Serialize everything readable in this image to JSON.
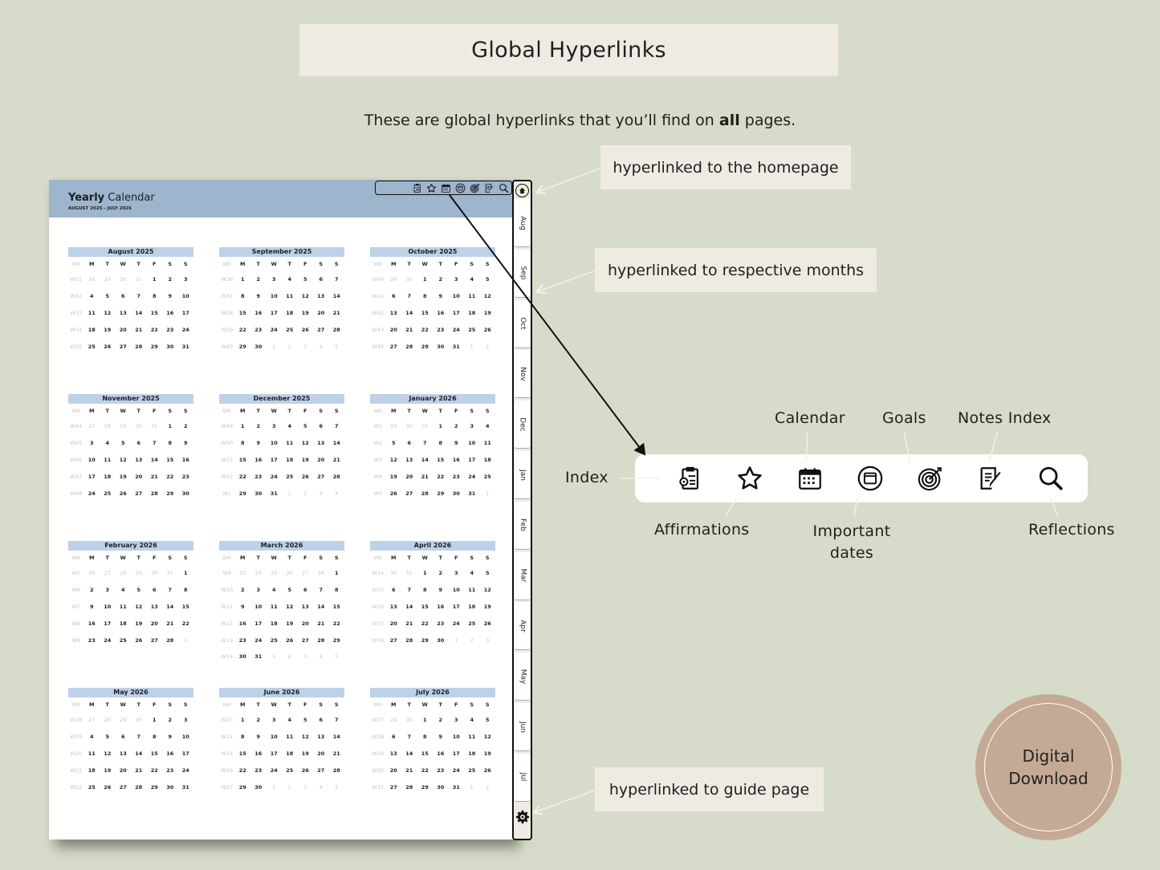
{
  "title": "Global Hyperlinks",
  "subtitle_pre": "These are global hyperlinks that you’ll find on ",
  "subtitle_bold": "all",
  "subtitle_post": " pages.",
  "callouts": {
    "home": "hyperlinked to the homepage",
    "months": "hyperlinked to respective months",
    "guide": "hyperlinked to guide page"
  },
  "icon_labels": {
    "index": "Index",
    "affirmations": "Affirmations",
    "calendar": "Calendar",
    "important_dates_1": "Important",
    "important_dates_2": "dates",
    "goals": "Goals",
    "notes_index": "Notes Index",
    "reflections": "Reflections"
  },
  "icons": [
    "index-icon",
    "affirmations-star-icon",
    "calendar-icon",
    "important-dates-icon",
    "goals-target-icon",
    "notes-index-icon",
    "reflections-search-icon"
  ],
  "badge": {
    "line1": "Digital",
    "line2": "Download"
  },
  "colors": {
    "background": "#d6dcc9",
    "header": "#9db5cd",
    "month_header": "#bdd1e8",
    "badge": "#c4a995",
    "callout": "#efebe3"
  },
  "planner": {
    "title_bold": "Yearly",
    "title_rest": " Calendar",
    "range": "AUGUST 2025 - JULY 2026",
    "weekdays": [
      "WK",
      "M",
      "T",
      "W",
      "T",
      "F",
      "S",
      "S"
    ],
    "side_tabs": [
      "Aug",
      "Sep",
      "Oct",
      "Nov",
      "Dec",
      "Jan",
      "Feb",
      "Mar",
      "Apr",
      "May",
      "Jun",
      "Jul"
    ],
    "months": [
      {
        "title": "August 2025",
        "lead": 4,
        "trail": 0,
        "weeks": [
          [
            "W31",
            28,
            29,
            30,
            31,
            1,
            2,
            3
          ],
          [
            "W32",
            4,
            5,
            6,
            7,
            8,
            9,
            10
          ],
          [
            "W33",
            11,
            12,
            13,
            14,
            15,
            16,
            17
          ],
          [
            "W34",
            18,
            19,
            20,
            21,
            22,
            23,
            24
          ],
          [
            "W35",
            25,
            26,
            27,
            28,
            29,
            30,
            31
          ]
        ]
      },
      {
        "title": "September 2025",
        "lead": 0,
        "trail": 5,
        "weeks": [
          [
            "W36",
            1,
            2,
            3,
            4,
            5,
            6,
            7
          ],
          [
            "W37",
            8,
            9,
            10,
            11,
            12,
            13,
            14
          ],
          [
            "W38",
            15,
            16,
            17,
            18,
            19,
            20,
            21
          ],
          [
            "W39",
            22,
            23,
            24,
            25,
            26,
            27,
            28
          ],
          [
            "W40",
            29,
            30,
            1,
            2,
            3,
            4,
            5
          ]
        ]
      },
      {
        "title": "October 2025",
        "lead": 2,
        "trail": 2,
        "weeks": [
          [
            "W40",
            29,
            30,
            1,
            2,
            3,
            4,
            5
          ],
          [
            "W41",
            6,
            7,
            8,
            9,
            10,
            11,
            12
          ],
          [
            "W42",
            13,
            14,
            15,
            16,
            17,
            18,
            19
          ],
          [
            "W43",
            20,
            21,
            22,
            23,
            24,
            25,
            26
          ],
          [
            "W44",
            27,
            28,
            29,
            30,
            31,
            1,
            2
          ]
        ]
      },
      {
        "title": "November 2025",
        "lead": 5,
        "trail": 0,
        "weeks": [
          [
            "W44",
            27,
            28,
            29,
            30,
            31,
            1,
            2
          ],
          [
            "W45",
            3,
            4,
            5,
            6,
            7,
            8,
            9
          ],
          [
            "W46",
            10,
            11,
            12,
            13,
            14,
            15,
            16
          ],
          [
            "W47",
            17,
            18,
            19,
            20,
            21,
            22,
            23
          ],
          [
            "W48",
            24,
            25,
            26,
            27,
            28,
            29,
            30
          ]
        ]
      },
      {
        "title": "December 2025",
        "lead": 0,
        "trail": 4,
        "weeks": [
          [
            "W49",
            1,
            2,
            3,
            4,
            5,
            6,
            7
          ],
          [
            "W50",
            8,
            9,
            10,
            11,
            12,
            13,
            14
          ],
          [
            "W51",
            15,
            16,
            17,
            18,
            19,
            20,
            21
          ],
          [
            "W52",
            22,
            23,
            24,
            25,
            26,
            27,
            28
          ],
          [
            "W1",
            29,
            30,
            31,
            1,
            2,
            3,
            4
          ]
        ]
      },
      {
        "title": "January 2026",
        "lead": 3,
        "trail": 1,
        "weeks": [
          [
            "W1",
            29,
            30,
            31,
            1,
            2,
            3,
            4
          ],
          [
            "W2",
            5,
            6,
            7,
            8,
            9,
            10,
            11
          ],
          [
            "W3",
            12,
            13,
            14,
            15,
            16,
            17,
            18
          ],
          [
            "W4",
            19,
            20,
            21,
            22,
            23,
            24,
            25
          ],
          [
            "W5",
            26,
            27,
            28,
            29,
            30,
            31,
            1
          ]
        ]
      },
      {
        "title": "February 2026",
        "lead": 6,
        "trail": 1,
        "weeks": [
          [
            "W5",
            26,
            27,
            28,
            29,
            30,
            31,
            1
          ],
          [
            "W6",
            2,
            3,
            4,
            5,
            6,
            7,
            8
          ],
          [
            "W7",
            9,
            10,
            11,
            12,
            13,
            14,
            15
          ],
          [
            "W8",
            16,
            17,
            18,
            19,
            20,
            21,
            22
          ],
          [
            "W9",
            23,
            24,
            25,
            26,
            27,
            28,
            1
          ]
        ]
      },
      {
        "title": "March 2026",
        "lead": 6,
        "trail": 5,
        "weeks": [
          [
            "W9",
            23,
            24,
            25,
            26,
            27,
            28,
            1
          ],
          [
            "W10",
            2,
            3,
            4,
            5,
            6,
            7,
            8
          ],
          [
            "W11",
            9,
            10,
            11,
            12,
            13,
            14,
            15
          ],
          [
            "W12",
            16,
            17,
            18,
            19,
            20,
            21,
            22
          ],
          [
            "W13",
            23,
            24,
            25,
            26,
            27,
            28,
            29
          ],
          [
            "W14",
            30,
            31,
            1,
            2,
            3,
            4,
            5
          ]
        ]
      },
      {
        "title": "April 2026",
        "lead": 2,
        "trail": 3,
        "weeks": [
          [
            "W14",
            30,
            31,
            1,
            2,
            3,
            4,
            5
          ],
          [
            "W15",
            6,
            7,
            8,
            9,
            10,
            11,
            12
          ],
          [
            "W16",
            13,
            14,
            15,
            16,
            17,
            18,
            19
          ],
          [
            "W17",
            20,
            21,
            22,
            23,
            24,
            25,
            26
          ],
          [
            "W18",
            27,
            28,
            29,
            30,
            1,
            2,
            3
          ]
        ]
      },
      {
        "title": "May 2026",
        "lead": 4,
        "trail": 0,
        "weeks": [
          [
            "W18",
            27,
            28,
            29,
            30,
            1,
            2,
            3
          ],
          [
            "W19",
            4,
            5,
            6,
            7,
            8,
            9,
            10
          ],
          [
            "W20",
            11,
            12,
            13,
            14,
            15,
            16,
            17
          ],
          [
            "W21",
            18,
            19,
            20,
            21,
            22,
            23,
            24
          ],
          [
            "W22",
            25,
            26,
            27,
            28,
            29,
            30,
            31
          ]
        ]
      },
      {
        "title": "June 2026",
        "lead": 0,
        "trail": 5,
        "weeks": [
          [
            "W23",
            1,
            2,
            3,
            4,
            5,
            6,
            7
          ],
          [
            "W24",
            8,
            9,
            10,
            11,
            12,
            13,
            14
          ],
          [
            "W25",
            15,
            16,
            17,
            18,
            19,
            20,
            21
          ],
          [
            "W26",
            22,
            23,
            24,
            25,
            26,
            27,
            28
          ],
          [
            "W27",
            29,
            30,
            1,
            2,
            3,
            4,
            5
          ]
        ]
      },
      {
        "title": "July 2026",
        "lead": 2,
        "trail": 2,
        "weeks": [
          [
            "W27",
            29,
            30,
            1,
            2,
            3,
            4,
            5
          ],
          [
            "W28",
            6,
            7,
            8,
            9,
            10,
            11,
            12
          ],
          [
            "W29",
            13,
            14,
            15,
            16,
            17,
            18,
            19
          ],
          [
            "W30",
            20,
            21,
            22,
            23,
            24,
            25,
            26
          ],
          [
            "W31",
            27,
            28,
            29,
            30,
            31,
            1,
            2
          ]
        ]
      }
    ]
  }
}
